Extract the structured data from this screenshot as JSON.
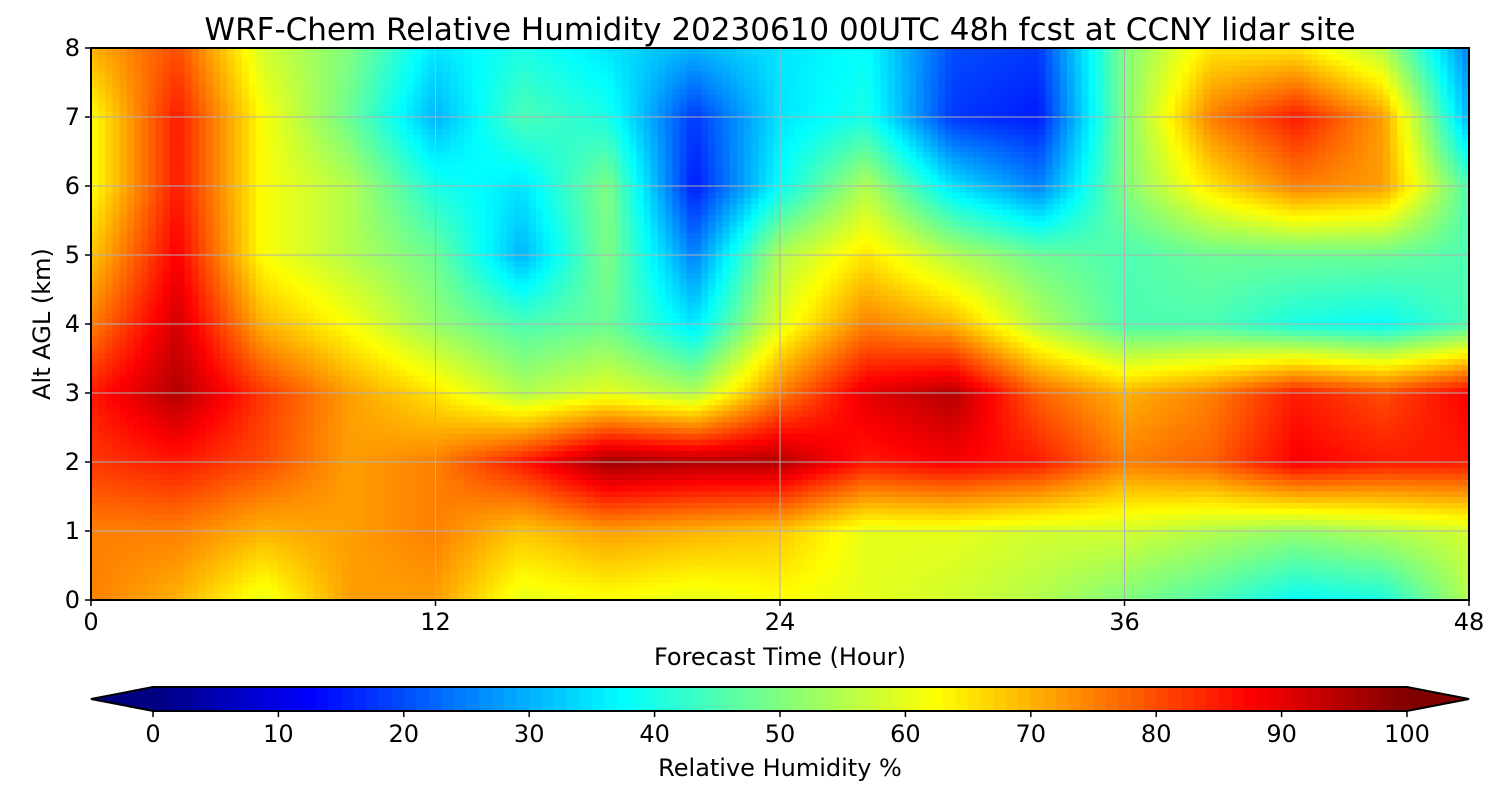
{
  "chart_data": {
    "type": "heatmap",
    "title": "WRF-Chem Relative Humidity 20230610 00UTC 48h fcst at CCNY lidar site",
    "xlabel": "Forecast Time (Hour)",
    "ylabel": "Alt AGL (km)",
    "xlim": [
      0,
      48
    ],
    "ylim": [
      0,
      8
    ],
    "x_ticks": [
      "0",
      "12",
      "24",
      "36",
      "48"
    ],
    "y_ticks": [
      "0",
      "1",
      "2",
      "3",
      "4",
      "5",
      "6",
      "7",
      "8"
    ],
    "grid": true,
    "colormap": "jet",
    "colorbar": {
      "label": "Relative Humidity %",
      "range": [
        0,
        100
      ],
      "ticks": [
        "0",
        "10",
        "20",
        "30",
        "40",
        "50",
        "60",
        "70",
        "80",
        "90",
        "100"
      ],
      "orientation": "horizontal",
      "extend": "both"
    },
    "grid_x": [
      0,
      3,
      6,
      9,
      12,
      15,
      18,
      21,
      24,
      27,
      30,
      33,
      36,
      39,
      42,
      45,
      48
    ],
    "grid_y": [
      0,
      1,
      2,
      3,
      4,
      5,
      6,
      7,
      8
    ],
    "values": [
      [
        75,
        70,
        60,
        72,
        72,
        60,
        62,
        60,
        62,
        60,
        58,
        55,
        50,
        45,
        38,
        40,
        55
      ],
      [
        75,
        75,
        70,
        72,
        75,
        68,
        72,
        70,
        68,
        60,
        60,
        58,
        58,
        55,
        52,
        55,
        58
      ],
      [
        82,
        85,
        80,
        72,
        75,
        85,
        97,
        95,
        95,
        85,
        88,
        85,
        75,
        78,
        88,
        85,
        85
      ],
      [
        85,
        95,
        82,
        72,
        65,
        55,
        60,
        55,
        75,
        90,
        95,
        78,
        70,
        75,
        85,
        80,
        88
      ],
      [
        75,
        92,
        70,
        62,
        52,
        45,
        48,
        35,
        60,
        75,
        70,
        55,
        45,
        45,
        40,
        38,
        45
      ],
      [
        68,
        88,
        62,
        55,
        48,
        30,
        50,
        25,
        55,
        65,
        55,
        48,
        45,
        48,
        48,
        48,
        45
      ],
      [
        62,
        85,
        62,
        55,
        40,
        35,
        50,
        15,
        38,
        55,
        35,
        25,
        50,
        65,
        75,
        72,
        45
      ],
      [
        62,
        85,
        62,
        48,
        30,
        45,
        40,
        18,
        35,
        40,
        18,
        15,
        50,
        75,
        85,
        72,
        30
      ],
      [
        70,
        80,
        58,
        50,
        35,
        40,
        35,
        30,
        35,
        38,
        20,
        18,
        50,
        65,
        65,
        55,
        25
      ]
    ]
  }
}
